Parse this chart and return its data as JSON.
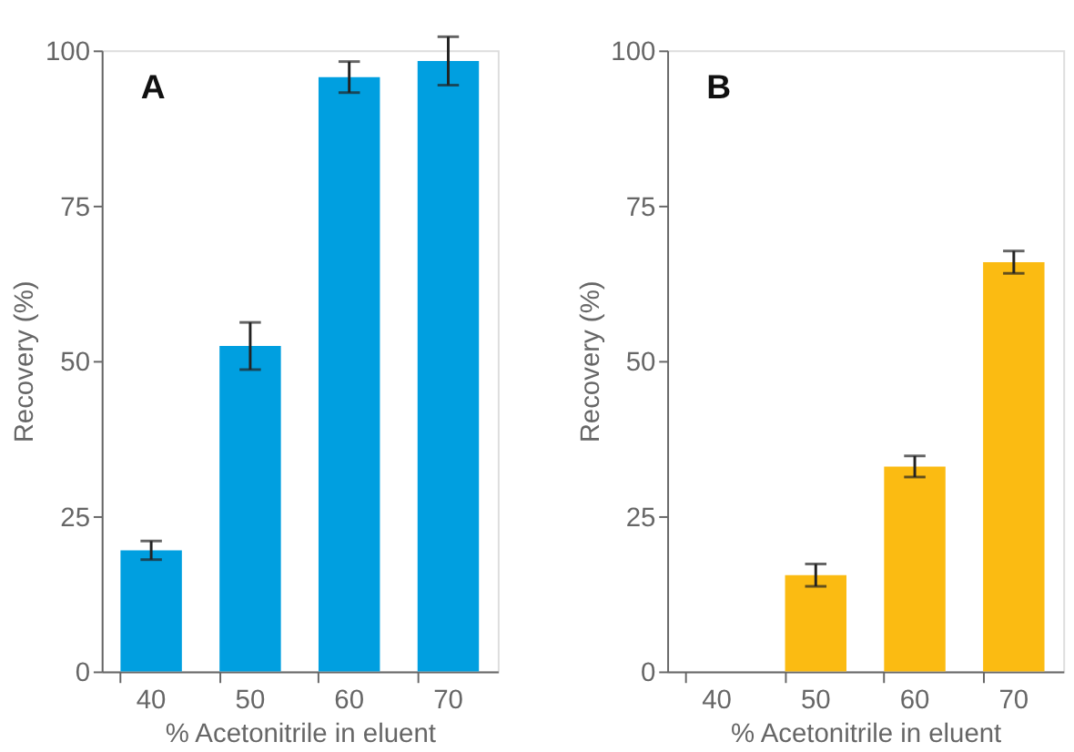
{
  "chart_data": [
    {
      "type": "bar",
      "title": "A",
      "xlabel": "% Acetonitrile in eluent",
      "ylabel": "Recovery (%)",
      "categories": [
        "40",
        "50",
        "60",
        "70"
      ],
      "series": [
        {
          "color": "#009fe0",
          "values": [
            19.5,
            52.4,
            95.7,
            98.3
          ],
          "errors": [
            1.5,
            3.8,
            2.5,
            3.9
          ]
        }
      ],
      "ylim": [
        0,
        100
      ],
      "yticks": [
        0,
        25,
        50,
        75,
        100
      ],
      "grid": false,
      "legend": false
    },
    {
      "type": "bar",
      "title": "B",
      "xlabel": "% Acetonitrile in eluent",
      "ylabel": "Recovery (%)",
      "categories": [
        "40",
        "50",
        "60",
        "70"
      ],
      "series": [
        {
          "color": "#fbbb12",
          "values": [
            0,
            15.5,
            33.0,
            65.9
          ],
          "errors": [
            null,
            1.8,
            1.7,
            1.8
          ]
        }
      ],
      "ylim": [
        0,
        100
      ],
      "yticks": [
        0,
        25,
        50,
        75,
        100
      ],
      "grid": false,
      "legend": false
    }
  ]
}
